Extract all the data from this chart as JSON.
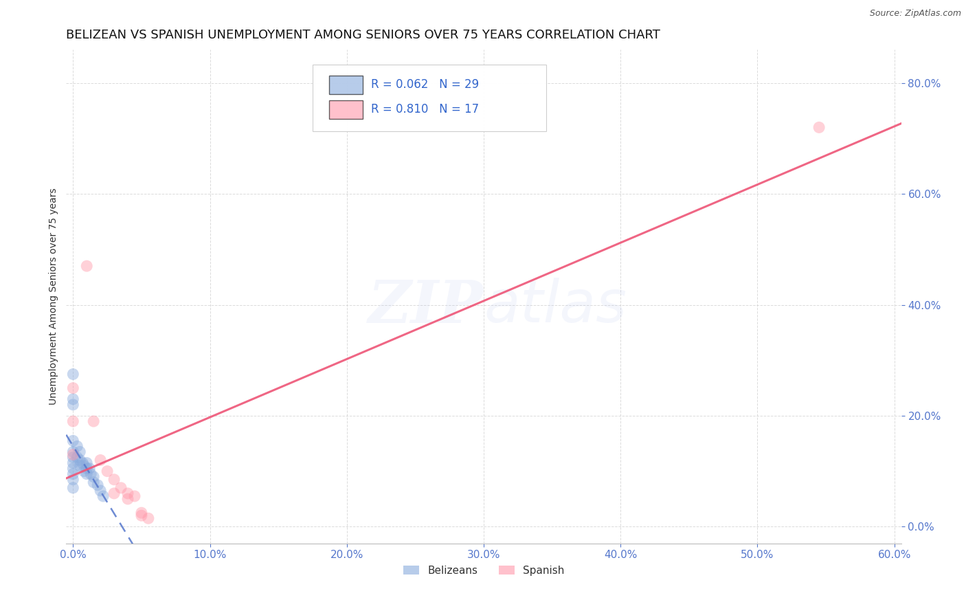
{
  "title": "BELIZEAN VS SPANISH UNEMPLOYMENT AMONG SENIORS OVER 75 YEARS CORRELATION CHART",
  "source": "Source: ZipAtlas.com",
  "ylabel": "Unemployment Among Seniors over 75 years",
  "xlim": [
    -0.005,
    0.605
  ],
  "ylim": [
    -0.03,
    0.86
  ],
  "xticks": [
    0.0,
    0.1,
    0.2,
    0.3,
    0.4,
    0.5,
    0.6
  ],
  "yticks": [
    0.0,
    0.2,
    0.4,
    0.6,
    0.8
  ],
  "belizean_x": [
    0.0,
    0.0,
    0.0,
    0.0,
    0.0,
    0.0,
    0.0,
    0.0,
    0.0,
    0.0,
    0.0,
    0.003,
    0.003,
    0.005,
    0.005,
    0.005,
    0.007,
    0.008,
    0.008,
    0.01,
    0.01,
    0.01,
    0.012,
    0.013,
    0.015,
    0.015,
    0.018,
    0.02,
    0.022
  ],
  "belizean_y": [
    0.275,
    0.23,
    0.22,
    0.155,
    0.135,
    0.125,
    0.115,
    0.105,
    0.095,
    0.085,
    0.07,
    0.145,
    0.125,
    0.135,
    0.12,
    0.11,
    0.115,
    0.11,
    0.1,
    0.115,
    0.105,
    0.095,
    0.105,
    0.095,
    0.09,
    0.08,
    0.075,
    0.065,
    0.055
  ],
  "spanish_x": [
    0.0,
    0.0,
    0.0,
    0.01,
    0.015,
    0.02,
    0.025,
    0.03,
    0.035,
    0.04,
    0.04,
    0.045,
    0.05,
    0.05,
    0.055,
    0.03,
    0.545
  ],
  "spanish_y": [
    0.25,
    0.19,
    0.13,
    0.47,
    0.19,
    0.12,
    0.1,
    0.085,
    0.07,
    0.06,
    0.05,
    0.055,
    0.025,
    0.02,
    0.015,
    0.06,
    0.72
  ],
  "R_belizean": 0.062,
  "N_belizean": 29,
  "R_spanish": 0.81,
  "N_spanish": 17,
  "color_belizean": "#88AADD",
  "color_spanish": "#FF99AA",
  "trend_belizean_color": "#5577CC",
  "trend_spanish_color": "#EE5577",
  "background_color": "#ffffff",
  "grid_color": "#cccccc",
  "title_fontsize": 13,
  "axis_label_fontsize": 10,
  "tick_fontsize": 11,
  "marker_size": 150,
  "marker_alpha": 0.45
}
